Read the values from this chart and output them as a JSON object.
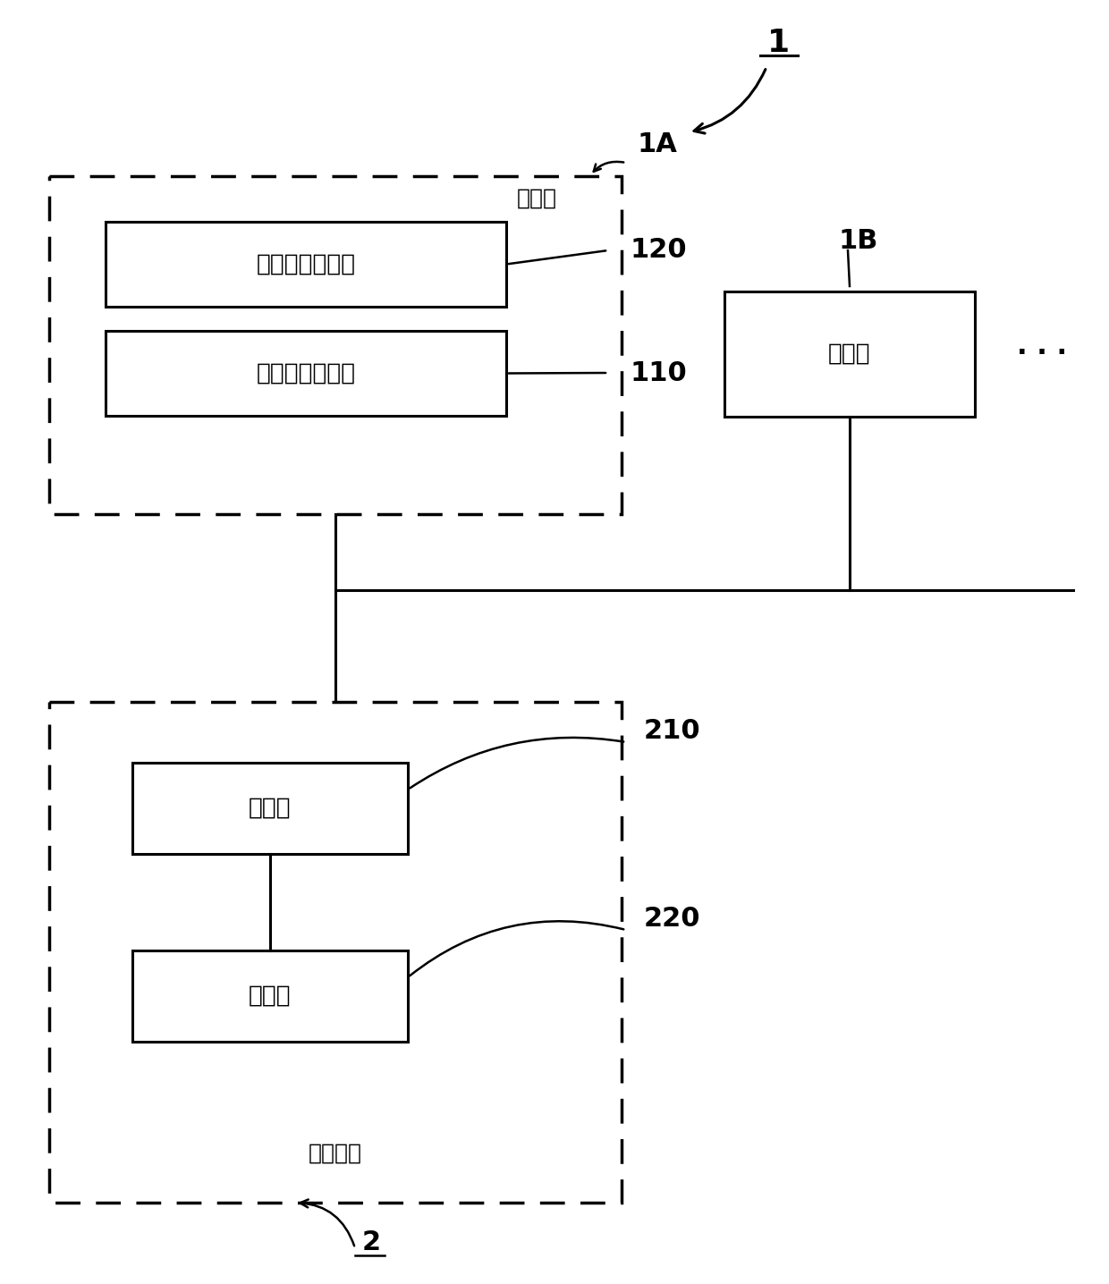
{
  "bg_color": "#ffffff",
  "label_1": "1",
  "label_1A": "1A",
  "label_1B": "1B",
  "label_2": "2",
  "text_1A_box": "移动体",
  "text_120": "位置信息获得部",
  "text_110": "水分信息获得部",
  "text_1B_box": "移动体",
  "text_2_box": "信息中心",
  "text_210": "收集部",
  "text_220": "预测部",
  "num_120": "120",
  "num_110": "110",
  "num_210": "210",
  "num_220": "220",
  "dots": "- - -"
}
